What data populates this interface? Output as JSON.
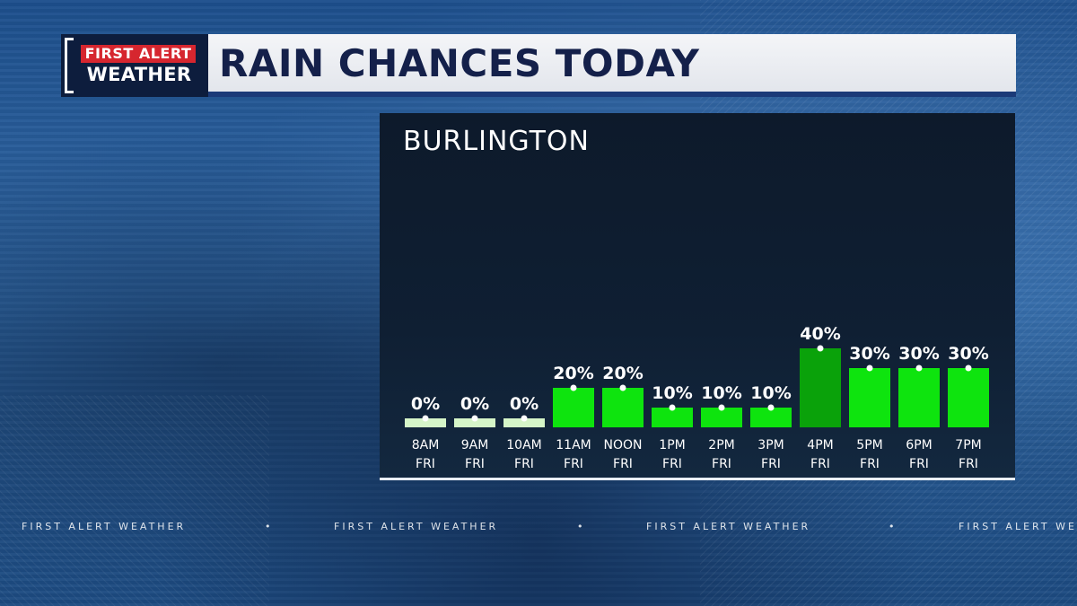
{
  "header": {
    "logo_top": "FIRST ALERT",
    "logo_bottom": "WEATHER",
    "title": "RAIN CHANCES TODAY"
  },
  "ticker": {
    "text": "FIRST ALERT WEATHER",
    "separator": "•"
  },
  "colors": {
    "bar_light": "#d5f5c8",
    "bar_green": "#0ee40e",
    "bar_peak": "#0aa20a",
    "header_navy": "#14204a",
    "logo_red": "#d6262f"
  },
  "chart_data": {
    "type": "bar",
    "title": "BURLINGTON",
    "categories": [
      "8AM",
      "9AM",
      "10AM",
      "11AM",
      "NOON",
      "1PM",
      "2PM",
      "3PM",
      "4PM",
      "5PM",
      "6PM",
      "7PM"
    ],
    "category_sublabels": [
      "FRI",
      "FRI",
      "FRI",
      "FRI",
      "FRI",
      "FRI",
      "FRI",
      "FRI",
      "FRI",
      "FRI",
      "FRI",
      "FRI"
    ],
    "values": [
      0,
      0,
      0,
      20,
      20,
      10,
      10,
      10,
      40,
      30,
      30,
      30
    ],
    "value_labels": [
      "0%",
      "0%",
      "0%",
      "20%",
      "20%",
      "10%",
      "10%",
      "10%",
      "40%",
      "30%",
      "30%",
      "30%"
    ],
    "unit": "%",
    "ylim": [
      0,
      100
    ],
    "grid": false,
    "legend": "none"
  }
}
